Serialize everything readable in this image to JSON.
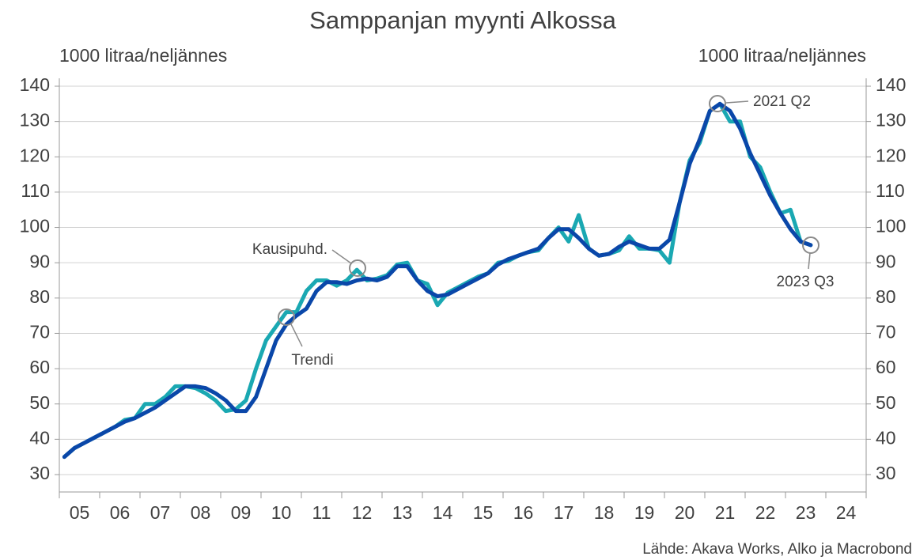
{
  "chart_data": {
    "type": "line",
    "title": "Samppanjan myynti Alkossa",
    "y_label": "1000 litraa/neljännes",
    "y2_label": "1000 litraa/neljännes",
    "source": "Lähde: Akava Works, Alko ja Macrobond",
    "annotations": [
      "Kausipuhd.",
      "Trendi",
      "2021 Q2",
      "2023 Q3"
    ],
    "xlim": [
      2005,
      2025
    ],
    "xtick_marks": [
      2005,
      2006,
      2007,
      2008,
      2009,
      2010,
      2011,
      2012,
      2013,
      2014,
      2015,
      2016,
      2017,
      2018,
      2019,
      2020,
      2021,
      2022,
      2023,
      2024,
      2025
    ],
    "xticks": [
      {
        "value": 2005.5,
        "label": "05"
      },
      {
        "value": 2006.5,
        "label": "06"
      },
      {
        "value": 2007.5,
        "label": "07"
      },
      {
        "value": 2008.5,
        "label": "08"
      },
      {
        "value": 2009.5,
        "label": "09"
      },
      {
        "value": 2010.5,
        "label": "10"
      },
      {
        "value": 2011.5,
        "label": "11"
      },
      {
        "value": 2012.5,
        "label": "12"
      },
      {
        "value": 2013.5,
        "label": "13"
      },
      {
        "value": 2014.5,
        "label": "14"
      },
      {
        "value": 2015.5,
        "label": "15"
      },
      {
        "value": 2016.5,
        "label": "16"
      },
      {
        "value": 2017.5,
        "label": "17"
      },
      {
        "value": 2018.5,
        "label": "18"
      },
      {
        "value": 2019.5,
        "label": "19"
      },
      {
        "value": 2020.5,
        "label": "20"
      },
      {
        "value": 2021.5,
        "label": "21"
      },
      {
        "value": 2022.5,
        "label": "22"
      },
      {
        "value": 2023.5,
        "label": "23"
      },
      {
        "value": 2024.5,
        "label": "24"
      }
    ],
    "ylim": [
      25,
      140
    ],
    "yticks": [
      30,
      40,
      50,
      60,
      70,
      80,
      90,
      100,
      110,
      120,
      130,
      140
    ],
    "y2lim": [
      25,
      140
    ],
    "y2ticks": [
      30,
      40,
      50,
      60,
      70,
      80,
      90,
      100,
      110,
      120,
      130,
      140
    ],
    "grid": true,
    "x": [
      2005.125,
      2005.375,
      2005.625,
      2005.875,
      2006.125,
      2006.375,
      2006.625,
      2006.875,
      2007.125,
      2007.375,
      2007.625,
      2007.875,
      2008.125,
      2008.375,
      2008.625,
      2008.875,
      2009.125,
      2009.375,
      2009.625,
      2009.875,
      2010.125,
      2010.375,
      2010.625,
      2010.875,
      2011.125,
      2011.375,
      2011.625,
      2011.875,
      2012.125,
      2012.375,
      2012.625,
      2012.875,
      2013.125,
      2013.375,
      2013.625,
      2013.875,
      2014.125,
      2014.375,
      2014.625,
      2014.875,
      2015.125,
      2015.375,
      2015.625,
      2015.875,
      2016.125,
      2016.375,
      2016.625,
      2016.875,
      2017.125,
      2017.375,
      2017.625,
      2017.875,
      2018.125,
      2018.375,
      2018.625,
      2018.875,
      2019.125,
      2019.375,
      2019.625,
      2019.875,
      2020.125,
      2020.375,
      2020.625,
      2020.875,
      2021.125,
      2021.375,
      2021.625,
      2021.875,
      2022.125,
      2022.375,
      2022.625,
      2022.875,
      2023.125,
      2023.375,
      2023.625
    ],
    "series": [
      {
        "color": "#1aa8b2",
        "values": [
          35,
          37.5,
          39,
          40.5,
          42,
          43.5,
          45.5,
          46,
          50,
          50,
          52,
          55,
          55,
          54.5,
          53,
          51,
          48,
          48.5,
          51,
          60,
          68,
          72,
          76,
          76,
          82,
          85,
          85,
          83.5,
          85,
          88,
          85,
          85.5,
          86.5,
          89.5,
          90,
          85,
          84,
          78,
          81.5,
          83,
          84.5,
          86,
          87,
          90,
          90.5,
          92,
          93,
          93.5,
          97,
          100,
          96,
          103.5,
          94,
          92,
          92.5,
          93.5,
          97.5,
          94,
          94,
          93.5,
          90,
          107,
          119,
          124,
          133,
          135,
          130,
          130,
          120,
          117,
          110,
          104,
          105,
          96,
          95
        ]
      },
      {
        "color": "#0a47a9",
        "values": [
          35,
          37.5,
          39,
          40.5,
          42,
          43.5,
          45,
          46,
          47.5,
          49,
          51,
          53,
          55,
          55,
          54.5,
          53,
          51,
          48,
          48,
          52,
          60,
          68,
          72.5,
          75,
          77,
          82,
          84.5,
          84.5,
          84,
          85,
          85.5,
          85,
          86,
          89,
          89,
          85,
          82,
          80.5,
          81,
          82.5,
          84,
          85.5,
          87,
          89.5,
          91,
          92,
          93,
          94,
          97,
          99.5,
          99.5,
          97,
          94,
          92,
          92.5,
          94.5,
          96,
          95,
          94,
          94,
          96.5,
          107,
          118,
          125,
          133,
          135,
          133,
          128,
          121,
          115,
          109,
          104,
          99.5,
          96,
          95
        ]
      }
    ]
  }
}
